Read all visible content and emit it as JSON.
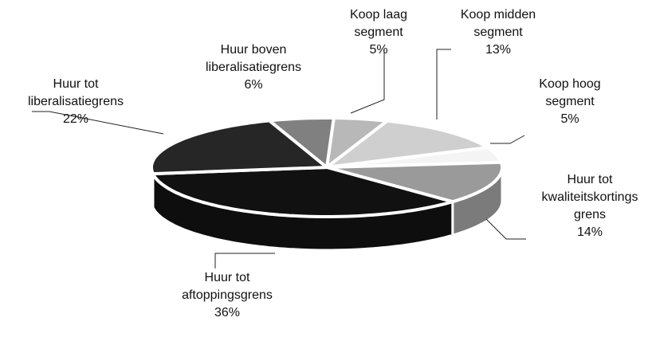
{
  "chart_data": {
    "type": "pie",
    "categories": [
      "Koop laag segment",
      "Koop midden segment",
      "Koop hoog segment",
      "Huur tot kwaliteitskortings grens",
      "Huur tot aftoppingsgrens",
      "Huur tot liberalisatiegrens",
      "Huur boven liberalisatiegrens"
    ],
    "values": [
      5,
      13,
      5,
      14,
      36,
      22,
      6
    ],
    "value_labels": [
      "5%",
      "13%",
      "5%",
      "14%",
      "36%",
      "22%",
      "6%"
    ],
    "colors": [
      "#b8b8b8",
      "#cfcfcf",
      "#f4f4f4",
      "#9a9a9a",
      "#111111",
      "#262626",
      "#808080"
    ]
  }
}
